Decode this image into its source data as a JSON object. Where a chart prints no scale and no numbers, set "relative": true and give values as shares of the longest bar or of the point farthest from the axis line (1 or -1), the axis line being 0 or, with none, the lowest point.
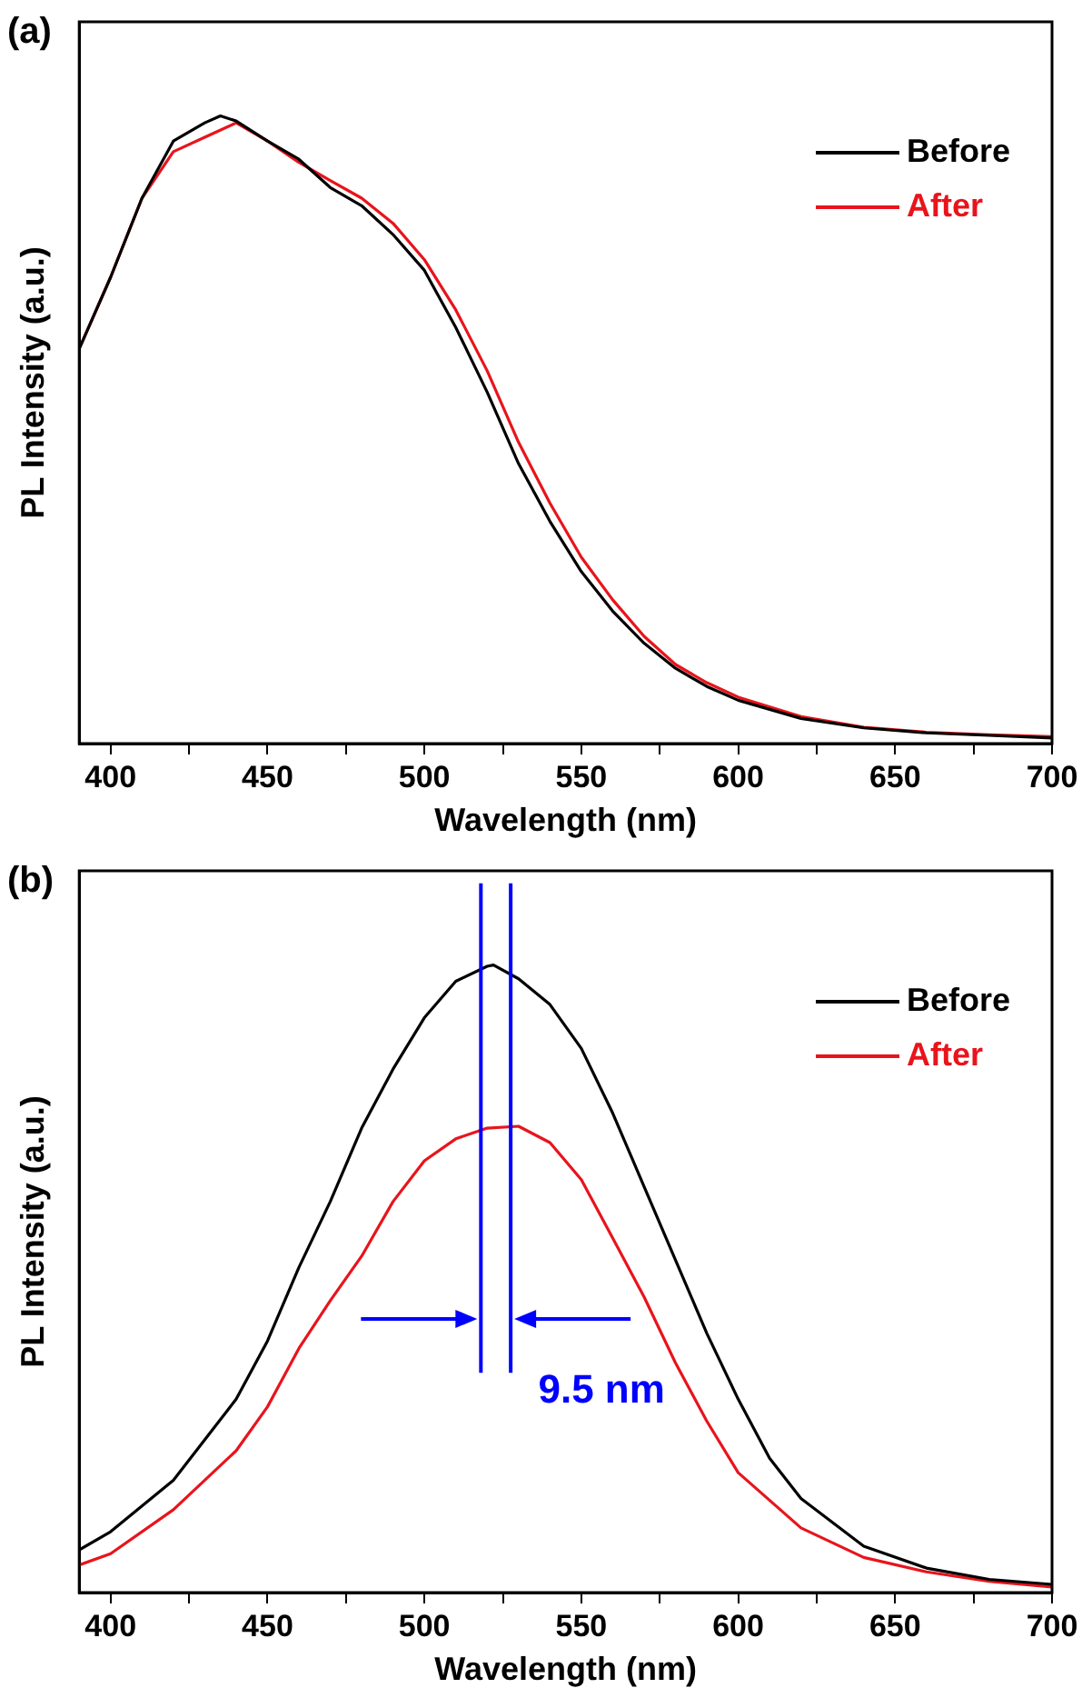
{
  "chart_data": [
    {
      "type": "line",
      "title": "(a)",
      "xlabel": "Wavelength (nm)",
      "ylabel": "PL Intensity (a.u.)",
      "relative": true,
      "legend": "top right",
      "grid": false,
      "marker": "none",
      "line_style": "solid",
      "xlim": [
        390,
        700
      ],
      "xticks": [
        400,
        {
          "value": 425,
          "label": null
        },
        450,
        {
          "value": 475,
          "label": null
        },
        500,
        {
          "value": 525,
          "label": null
        },
        550,
        {
          "value": 575,
          "label": null
        },
        600,
        {
          "value": 625,
          "label": null
        },
        650,
        {
          "value": 675,
          "label": null
        },
        700
      ],
      "series": [
        {
          "name": "Before",
          "color": "#000000",
          "x": [
            390,
            400,
            410,
            420,
            430,
            435,
            440,
            450,
            460,
            470,
            480,
            490,
            500,
            510,
            520,
            530,
            540,
            550,
            560,
            570,
            580,
            590,
            600,
            620,
            640,
            660,
            680,
            700
          ],
          "values": [
            0.629,
            0.743,
            0.869,
            0.96,
            0.989,
            1,
            0.992,
            0.96,
            0.931,
            0.886,
            0.857,
            0.811,
            0.754,
            0.663,
            0.56,
            0.446,
            0.354,
            0.274,
            0.211,
            0.16,
            0.12,
            0.091,
            0.069,
            0.04,
            0.025,
            0.017,
            0.013,
            0.009
          ]
        },
        {
          "name": "After",
          "color": "#e8141c",
          "x": [
            390,
            400,
            410,
            420,
            430,
            440,
            450,
            460,
            470,
            480,
            490,
            500,
            510,
            520,
            530,
            540,
            550,
            560,
            570,
            580,
            590,
            600,
            620,
            640,
            660,
            680,
            700
          ],
          "values": [
            0.629,
            0.743,
            0.869,
            0.943,
            0.966,
            0.989,
            0.96,
            0.926,
            0.897,
            0.869,
            0.829,
            0.771,
            0.691,
            0.594,
            0.48,
            0.383,
            0.297,
            0.229,
            0.171,
            0.126,
            0.097,
            0.074,
            0.043,
            0.026,
            0.018,
            0.014,
            0.011
          ]
        }
      ]
    },
    {
      "type": "line",
      "title": "(b)",
      "xlabel": "Wavelength (nm)",
      "ylabel": "PL Intensity (a.u.)",
      "relative": true,
      "legend": "top right",
      "grid": false,
      "marker": "none",
      "line_style": "solid",
      "xlim": [
        390,
        700
      ],
      "xticks": [
        400,
        {
          "value": 425,
          "label": null
        },
        450,
        {
          "value": 475,
          "label": null
        },
        500,
        {
          "value": 525,
          "label": null
        },
        550,
        {
          "value": 575,
          "label": null
        },
        600,
        {
          "value": 625,
          "label": null
        },
        650,
        {
          "value": 675,
          "label": null
        },
        700
      ],
      "series": [
        {
          "name": "Before",
          "color": "#000000",
          "x": [
            390,
            400,
            420,
            440,
            450,
            460,
            470,
            480,
            490,
            500,
            510,
            520,
            522,
            530,
            540,
            550,
            560,
            570,
            580,
            590,
            600,
            610,
            620,
            640,
            660,
            680,
            700
          ],
          "values": [
            0.068,
            0.097,
            0.179,
            0.308,
            0.401,
            0.518,
            0.623,
            0.74,
            0.834,
            0.916,
            0.974,
            0.998,
            1,
            0.978,
            0.937,
            0.867,
            0.764,
            0.647,
            0.53,
            0.413,
            0.308,
            0.214,
            0.15,
            0.074,
            0.039,
            0.021,
            0.013
          ]
        },
        {
          "name": "After",
          "color": "#e8141c",
          "x": [
            390,
            400,
            420,
            440,
            450,
            460,
            470,
            480,
            490,
            500,
            510,
            520,
            530,
            540,
            550,
            560,
            570,
            580,
            590,
            600,
            620,
            640,
            660,
            680,
            700
          ],
          "values": [
            0.044,
            0.062,
            0.132,
            0.226,
            0.296,
            0.389,
            0.465,
            0.536,
            0.623,
            0.688,
            0.723,
            0.74,
            0.743,
            0.717,
            0.658,
            0.565,
            0.471,
            0.366,
            0.273,
            0.191,
            0.103,
            0.056,
            0.033,
            0.018,
            0.009
          ]
        }
      ],
      "ref_lines": [
        {
          "axis": "x",
          "value": 518,
          "color": "#0000ff"
        },
        {
          "axis": "x",
          "value": 527.5,
          "color": "#0000ff"
        }
      ],
      "annotations": [
        "9.5 nm"
      ]
    }
  ]
}
